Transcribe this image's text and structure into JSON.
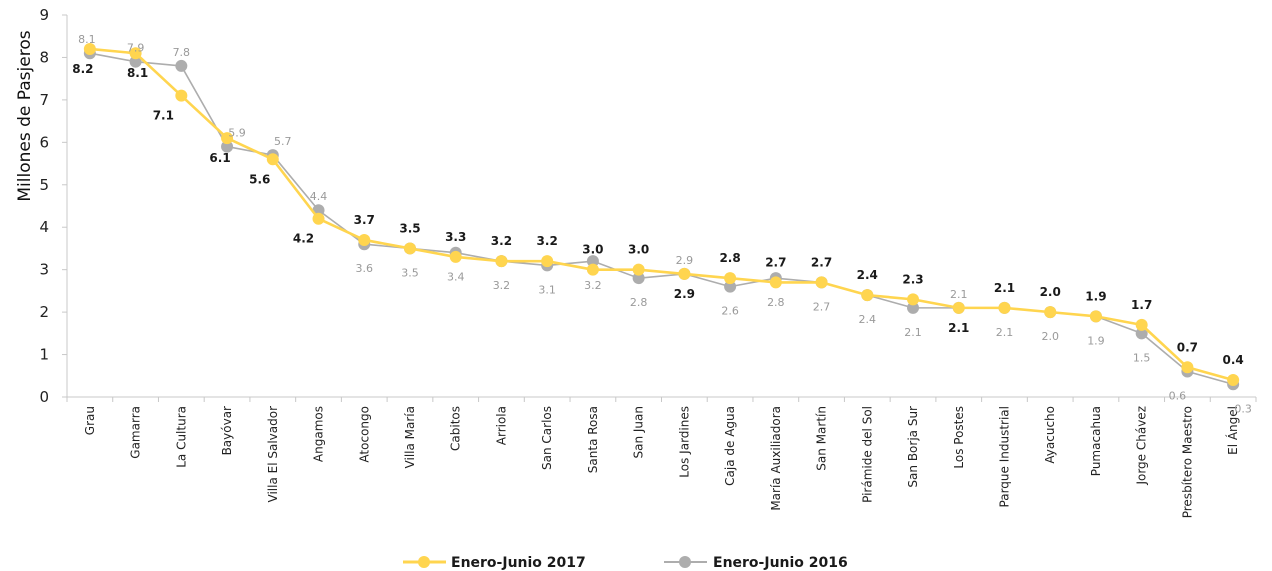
{
  "chart_data": {
    "type": "line",
    "ylabel": "Millones de Pasjeros",
    "ylim": [
      0,
      9
    ],
    "yticks": [
      "0",
      "1",
      "2",
      "3",
      "4",
      "5",
      "6",
      "7",
      "8",
      "9"
    ],
    "categories": [
      "Grau",
      "Gamarra",
      "La Cultura",
      "Bayóvar",
      "Villa El Salvador",
      "Angamos",
      "Atocongo",
      "Villa María",
      "Cabitos",
      "Arriola",
      "San Carlos",
      "Santa Rosa",
      "San Juan",
      "Los Jardines",
      "Caja de Agua",
      "María Auxiliadora",
      "San Martín",
      "Pirámide del Sol",
      "San Borja Sur",
      "Los Postes",
      "Parque Industrial",
      "Ayacucho",
      "Pumacahua",
      "Jorge Chávez",
      "Presbítero Maestro",
      "El Ángel"
    ],
    "legend_position": "bottom",
    "grid": false,
    "series": [
      {
        "name": "Enero-Junio 2017",
        "color": "#FFD54F",
        "values": [
          8.2,
          8.1,
          7.1,
          6.1,
          5.6,
          4.2,
          3.7,
          3.5,
          3.3,
          3.2,
          3.2,
          3.0,
          3.0,
          2.9,
          2.8,
          2.7,
          2.7,
          2.4,
          2.3,
          2.1,
          2.1,
          2.0,
          1.9,
          1.7,
          0.7,
          0.4
        ],
        "labels": [
          "8.2",
          "8.1",
          "7.1",
          "6.1",
          "5.6",
          "4.2",
          "3.7",
          "3.5",
          "3.3",
          "3.2",
          "3.2",
          "3.0",
          "3.0",
          "2.9",
          "2.8",
          "2.7",
          "2.7",
          "2.4",
          "2.3",
          "2.1",
          "2.1",
          "2.0",
          "1.9",
          "1.7",
          "0.7",
          "0.4"
        ]
      },
      {
        "name": "Enero-Junio 2016",
        "color": "#ADADAD",
        "values": [
          8.1,
          7.9,
          7.8,
          5.9,
          5.7,
          4.4,
          3.6,
          3.5,
          3.4,
          3.2,
          3.1,
          3.2,
          2.8,
          2.9,
          2.6,
          2.8,
          2.7,
          2.4,
          2.1,
          2.1,
          2.1,
          2.0,
          1.9,
          1.5,
          0.6,
          0.3
        ],
        "labels": [
          "8.1",
          "7.9",
          "7.8",
          "5.9",
          "5.7",
          "4.4",
          "3.6",
          "3.5",
          "3.4",
          "3.2",
          "3.1",
          "3.2",
          "2.8",
          "2.9",
          "2.6",
          "2.8",
          "2.7",
          "2.4",
          "2.1",
          "2.1",
          "2.1",
          "2.0",
          "1.9",
          "1.5",
          "0.6",
          "0.3"
        ]
      }
    ]
  }
}
